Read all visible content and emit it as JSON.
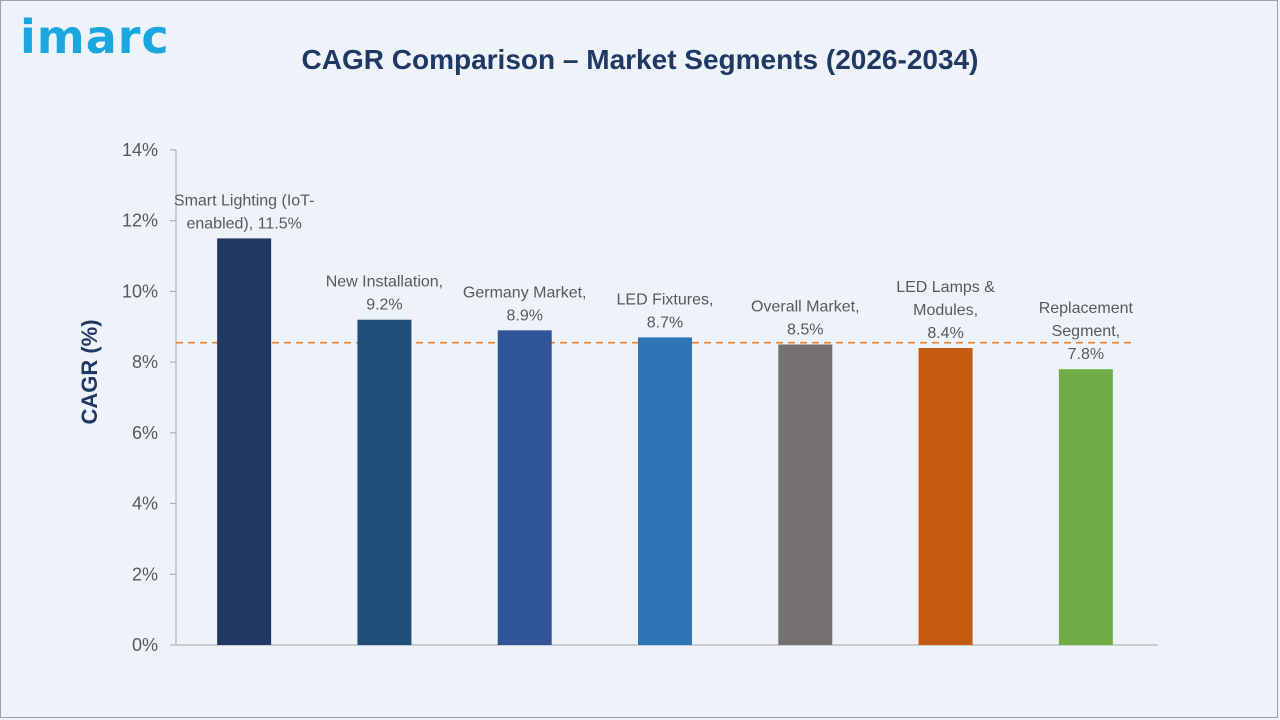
{
  "brand": {
    "logo_text": "imarc",
    "logo_color": "#1aa7e0"
  },
  "chart_data": {
    "type": "bar",
    "title": "CAGR Comparison – Market Segments (2026-2034)",
    "xlabel": "",
    "ylabel": "CAGR (%)",
    "ylim": [
      0,
      14
    ],
    "yticks": [
      "0%",
      "2%",
      "4%",
      "6%",
      "8%",
      "10%",
      "12%",
      "14%"
    ],
    "grid": false,
    "reference_line": {
      "value": 8.55,
      "style": "dashed",
      "color": "#ed7d31"
    },
    "categories": [
      "Smart Lighting (IoT-enabled)",
      "New Installation",
      "Germany Market",
      "LED Fixtures",
      "Overall Market",
      "LED Lamps & Modules",
      "Replacement Segment"
    ],
    "values": [
      11.5,
      9.2,
      8.9,
      8.7,
      8.5,
      8.4,
      7.8
    ],
    "data_labels": [
      [
        "Smart Lighting (IoT-",
        "enabled), 11.5%"
      ],
      [
        "New Installation,",
        "9.2%"
      ],
      [
        "Germany Market,",
        "8.9%"
      ],
      [
        "LED Fixtures,",
        "8.7%"
      ],
      [
        "Overall Market,",
        "8.5%"
      ],
      [
        "LED Lamps &",
        "Modules,",
        "8.4%"
      ],
      [
        "Replacement",
        "Segment,",
        "7.8%"
      ]
    ],
    "colors": [
      "#1f3864",
      "#1f4e79",
      "#2f5597",
      "#2e75b6",
      "#767171",
      "#c55a11",
      "#70ad47"
    ]
  }
}
